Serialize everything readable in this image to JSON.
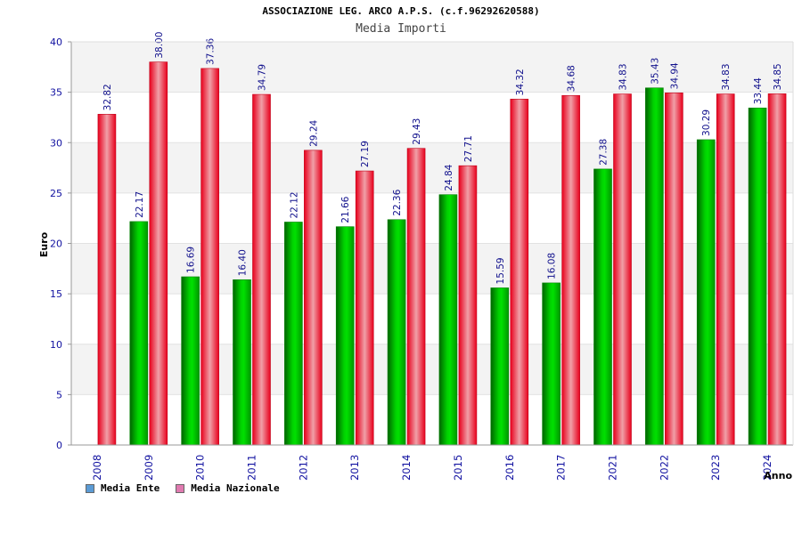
{
  "chart_data": {
    "type": "bar",
    "title": "ASSOCIAZIONE LEG. ARCO A.P.S. (c.f.96292620588)",
    "subtitle": "Media Importi",
    "xlabel": "Anno",
    "ylabel": "Euro",
    "ylim": [
      0,
      40
    ],
    "yticks": [
      "0",
      "5",
      "10",
      "15",
      "20",
      "25",
      "30",
      "35",
      "40"
    ],
    "categories": [
      "2008",
      "2009",
      "2010",
      "2011",
      "2012",
      "2013",
      "2014",
      "2015",
      "2016",
      "2017",
      "2021",
      "2022",
      "2023",
      "2024"
    ],
    "series": [
      {
        "name": "Media Ente",
        "color": "#00b400",
        "values": [
          null,
          22.17,
          16.69,
          16.4,
          22.12,
          21.66,
          22.36,
          24.84,
          15.59,
          16.08,
          27.38,
          35.43,
          30.29,
          33.44
        ],
        "labels": [
          "",
          "22.17",
          "16.69",
          "16.40",
          "22.12",
          "21.66",
          "22.36",
          "24.84",
          "15.59",
          "16.08",
          "27.38",
          "35.43",
          "30.29",
          "33.44"
        ]
      },
      {
        "name": "Media Nazionale",
        "color": "#e8182c",
        "values": [
          32.82,
          38.0,
          37.36,
          34.79,
          29.24,
          27.19,
          29.43,
          27.71,
          34.32,
          34.68,
          34.83,
          34.94,
          34.83,
          34.85
        ],
        "labels": [
          "32.82",
          "38.00",
          "37.36",
          "34.79",
          "29.24",
          "27.19",
          "29.43",
          "27.71",
          "34.32",
          "34.68",
          "34.83",
          "34.94",
          "34.83",
          "34.85"
        ]
      }
    ],
    "legend": {
      "placement": "bottom-left",
      "items": [
        {
          "label": "Media Ente",
          "color": "#5b9bd5"
        },
        {
          "label": "Media Nazionale",
          "color": "#e07ab0"
        }
      ]
    },
    "grid": true
  }
}
